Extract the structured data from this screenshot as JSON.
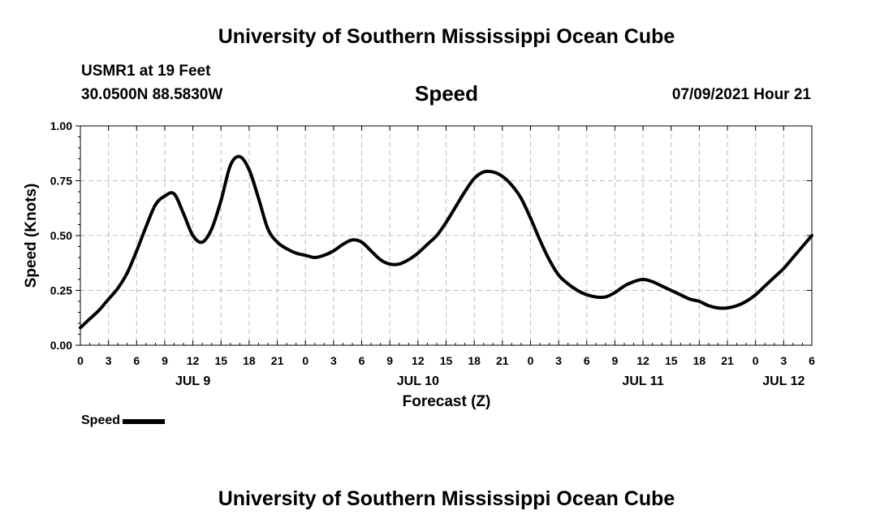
{
  "header": {
    "title": "University of Southern Mississippi Ocean Cube",
    "station": "USMR1 at 19 Feet",
    "coordinates": "30.0500N  88.5830W",
    "variable": "Speed",
    "datetime": "07/09/2021 Hour 21"
  },
  "footer": {
    "title": "University of Southern Mississippi Ocean Cube"
  },
  "legend": {
    "label": "Speed",
    "color": "#000000"
  },
  "chart_data": {
    "type": "line",
    "title": "Speed",
    "xlabel": "Forecast (Z)",
    "ylabel": "Speed (Knots)",
    "ylim": [
      0,
      1
    ],
    "yticks": [
      0.0,
      0.25,
      0.5,
      0.75,
      1.0
    ],
    "ytick_labels": [
      "0.00",
      "0.25",
      "0.50",
      "0.75",
      "1.00"
    ],
    "xlim": [
      0,
      78
    ],
    "xtick_hours": [
      0,
      3,
      6,
      9,
      12,
      15,
      18,
      21,
      24,
      27,
      30,
      33,
      36,
      39,
      42,
      45,
      48,
      51,
      54,
      57,
      60,
      63,
      66,
      69,
      72,
      75,
      78
    ],
    "xtick_labels": [
      "0",
      "3",
      "6",
      "9",
      "12",
      "15",
      "18",
      "21",
      "0",
      "3",
      "6",
      "9",
      "12",
      "15",
      "18",
      "21",
      "0",
      "3",
      "6",
      "9",
      "12",
      "15",
      "18",
      "21",
      "0",
      "3",
      "6"
    ],
    "date_labels": [
      {
        "hour": 12,
        "label": "JUL 9"
      },
      {
        "hour": 36,
        "label": "JUL 10"
      },
      {
        "hour": 60,
        "label": "JUL 11"
      },
      {
        "hour": 75,
        "label": "JUL 12"
      }
    ],
    "grid": true,
    "series": [
      {
        "name": "Speed",
        "color": "#000000",
        "x": [
          0,
          1,
          2,
          3,
          4,
          5,
          6,
          7,
          8,
          9,
          10,
          11,
          12,
          13,
          14,
          15,
          16,
          17,
          18,
          19,
          20,
          21,
          22,
          23,
          24,
          25,
          26,
          27,
          28,
          29,
          30,
          31,
          32,
          33,
          34,
          35,
          36,
          37,
          38,
          39,
          40,
          41,
          42,
          43,
          44,
          45,
          46,
          47,
          48,
          49,
          50,
          51,
          52,
          53,
          54,
          55,
          56,
          57,
          58,
          59,
          60,
          61,
          62,
          63,
          64,
          65,
          66,
          67,
          68,
          69,
          70,
          71,
          72,
          73,
          74,
          75,
          76,
          77,
          78
        ],
        "values": [
          0.08,
          0.12,
          0.16,
          0.21,
          0.26,
          0.33,
          0.43,
          0.54,
          0.64,
          0.68,
          0.69,
          0.6,
          0.5,
          0.47,
          0.53,
          0.66,
          0.82,
          0.86,
          0.8,
          0.67,
          0.53,
          0.47,
          0.44,
          0.42,
          0.41,
          0.4,
          0.41,
          0.43,
          0.46,
          0.48,
          0.47,
          0.43,
          0.39,
          0.37,
          0.37,
          0.39,
          0.42,
          0.46,
          0.5,
          0.56,
          0.63,
          0.7,
          0.76,
          0.79,
          0.79,
          0.77,
          0.73,
          0.67,
          0.58,
          0.48,
          0.39,
          0.32,
          0.28,
          0.25,
          0.23,
          0.22,
          0.22,
          0.24,
          0.27,
          0.29,
          0.3,
          0.29,
          0.27,
          0.25,
          0.23,
          0.21,
          0.2,
          0.18,
          0.17,
          0.17,
          0.18,
          0.2,
          0.23,
          0.27,
          0.31,
          0.35,
          0.4,
          0.45,
          0.5
        ]
      }
    ]
  }
}
